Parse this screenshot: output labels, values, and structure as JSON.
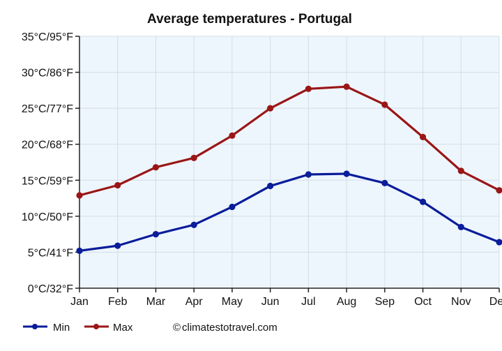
{
  "chart_data": {
    "type": "line",
    "title": "Average temperatures - Portugal",
    "categories": [
      "Jan",
      "Feb",
      "Mar",
      "Apr",
      "May",
      "Jun",
      "Jul",
      "Aug",
      "Sep",
      "Oct",
      "Nov",
      "Dec"
    ],
    "y_tick_labels": [
      "0°C/32°F",
      "5°C/41°F",
      "10°C/50°F",
      "15°C/59°F",
      "20°C/68°F",
      "25°C/77°F",
      "30°C/86°F",
      "35°C/95°F"
    ],
    "ylim": [
      0,
      35
    ],
    "y_tick_values": [
      0,
      5,
      10,
      15,
      20,
      25,
      30,
      35
    ],
    "grid": true,
    "legend_position": "bottom-left",
    "series": [
      {
        "name": "Min",
        "color": "#0a1d9a",
        "values": [
          5.2,
          5.9,
          7.5,
          8.8,
          11.3,
          14.2,
          15.8,
          15.9,
          14.6,
          12.0,
          8.5,
          6.4
        ]
      },
      {
        "name": "Max",
        "color": "#9a1616",
        "values": [
          12.9,
          14.3,
          16.8,
          18.1,
          21.2,
          25.0,
          27.7,
          28.0,
          25.5,
          21.0,
          16.3,
          13.6
        ]
      }
    ],
    "credit": "climatestotravel.com",
    "credit_symbol": "©"
  },
  "colors": {
    "plot_background": "#eef6fd",
    "grid": "#d3dce6",
    "axis": "#222222"
  }
}
